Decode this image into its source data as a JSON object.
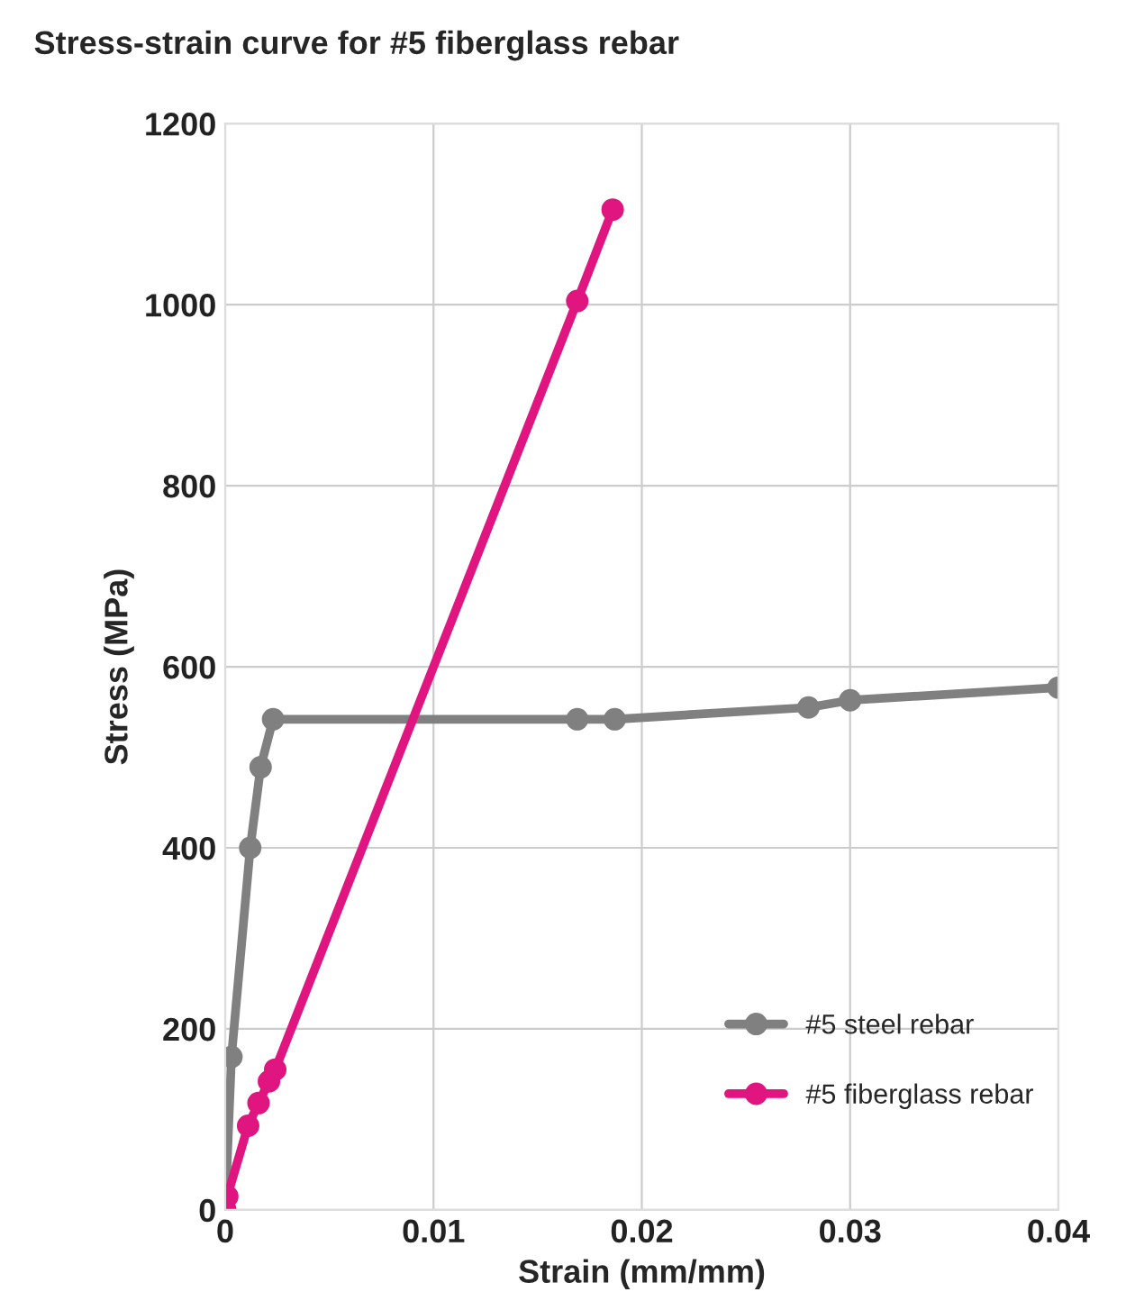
{
  "chart_data": {
    "type": "line",
    "title": "Stress-strain curve for #5 fiberglass rebar",
    "xlabel": "Strain (mm/mm)",
    "ylabel": "Stress (MPa)",
    "series": [
      {
        "name": "#5 steel rebar",
        "color": "#808080",
        "x": [
          0,
          0.0003,
          0.0012,
          0.0017,
          0.0023,
          0.0169,
          0.0187,
          0.028,
          0.03,
          0.04
        ],
        "values": [
          0,
          169,
          400,
          489,
          542,
          542,
          542,
          555,
          563,
          577
        ]
      },
      {
        "name": "#5 fiberglass rebar",
        "color": "#e0157f",
        "x": [
          0,
          0.0001,
          0.0011,
          0.0016,
          0.0021,
          0.0024,
          0.0169,
          0.0186
        ],
        "values": [
          0,
          15,
          93,
          118,
          142,
          155,
          1004,
          1105
        ]
      }
    ],
    "xlim": [
      0,
      0.04
    ],
    "xticks": [
      {
        "value": 0,
        "label": "0"
      },
      0.01,
      0.02,
      0.03,
      0.04
    ],
    "ylim": [
      0,
      1200
    ],
    "yticks": [
      0,
      200,
      400,
      600,
      800,
      1000,
      1200
    ],
    "grid": true,
    "legend": "bottom right",
    "marker": "circle",
    "line_style": "solid"
  }
}
